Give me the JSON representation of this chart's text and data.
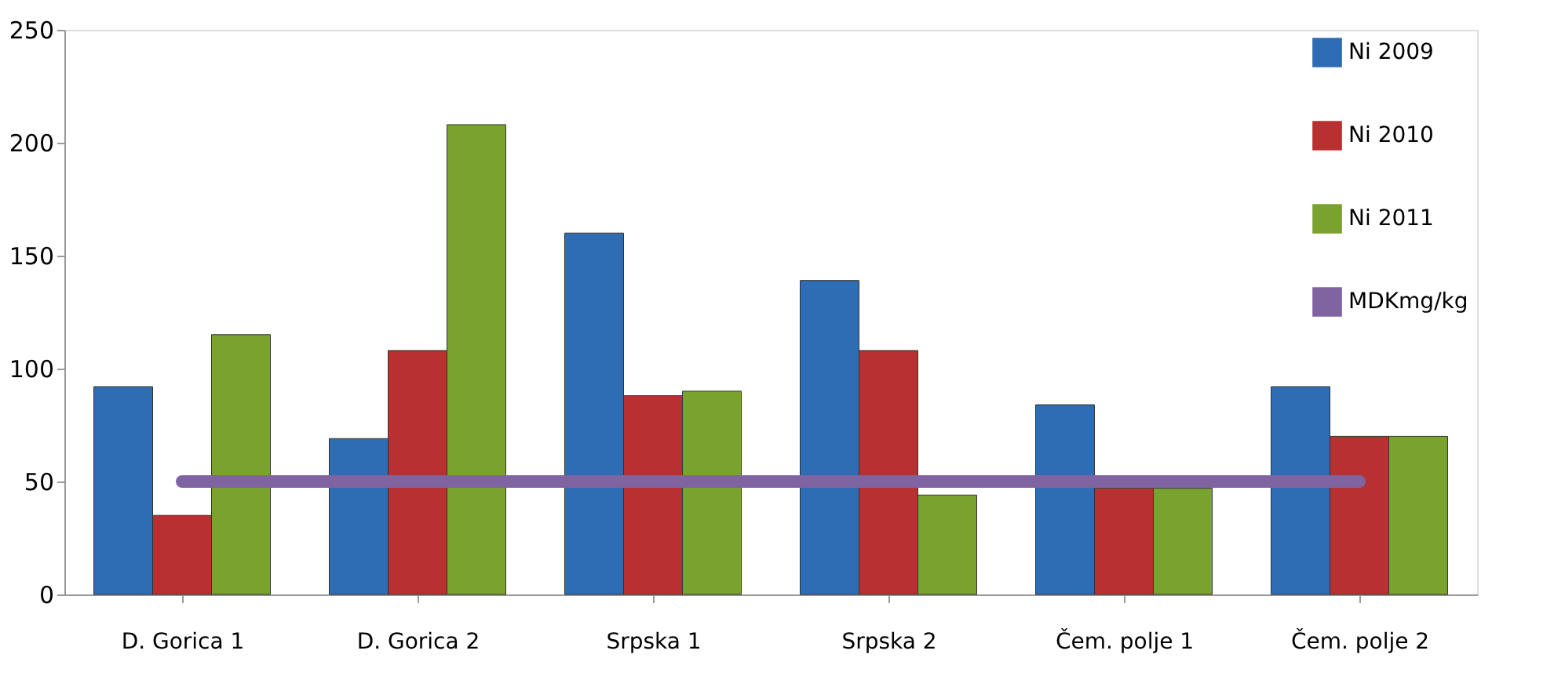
{
  "chart_data": {
    "type": "bar",
    "categories": [
      "D. Gorica 1",
      "D. Gorica 2",
      "Srpska 1",
      "Srpska 2",
      "Čem. polje 1",
      "Čem. polje 2"
    ],
    "series": [
      {
        "name": "Ni 2009",
        "color": "#2e6db4",
        "values": [
          92,
          69,
          160,
          139,
          84,
          92
        ]
      },
      {
        "name": "Ni 2010",
        "color": "#b8302f",
        "values": [
          35,
          108,
          88,
          108,
          47,
          70
        ]
      },
      {
        "name": "Ni 2011",
        "color": "#7aa22f",
        "values": [
          115,
          208,
          90,
          44,
          47,
          70
        ]
      },
      {
        "name": "MDKmg/kg",
        "color": "#8064a2",
        "type": "line",
        "values": [
          50,
          50,
          50,
          50,
          50,
          50
        ]
      }
    ],
    "ylim": [
      0,
      250
    ],
    "yticks": [
      0,
      50,
      100,
      150,
      200,
      250
    ],
    "grid": false,
    "legend": "top right"
  }
}
